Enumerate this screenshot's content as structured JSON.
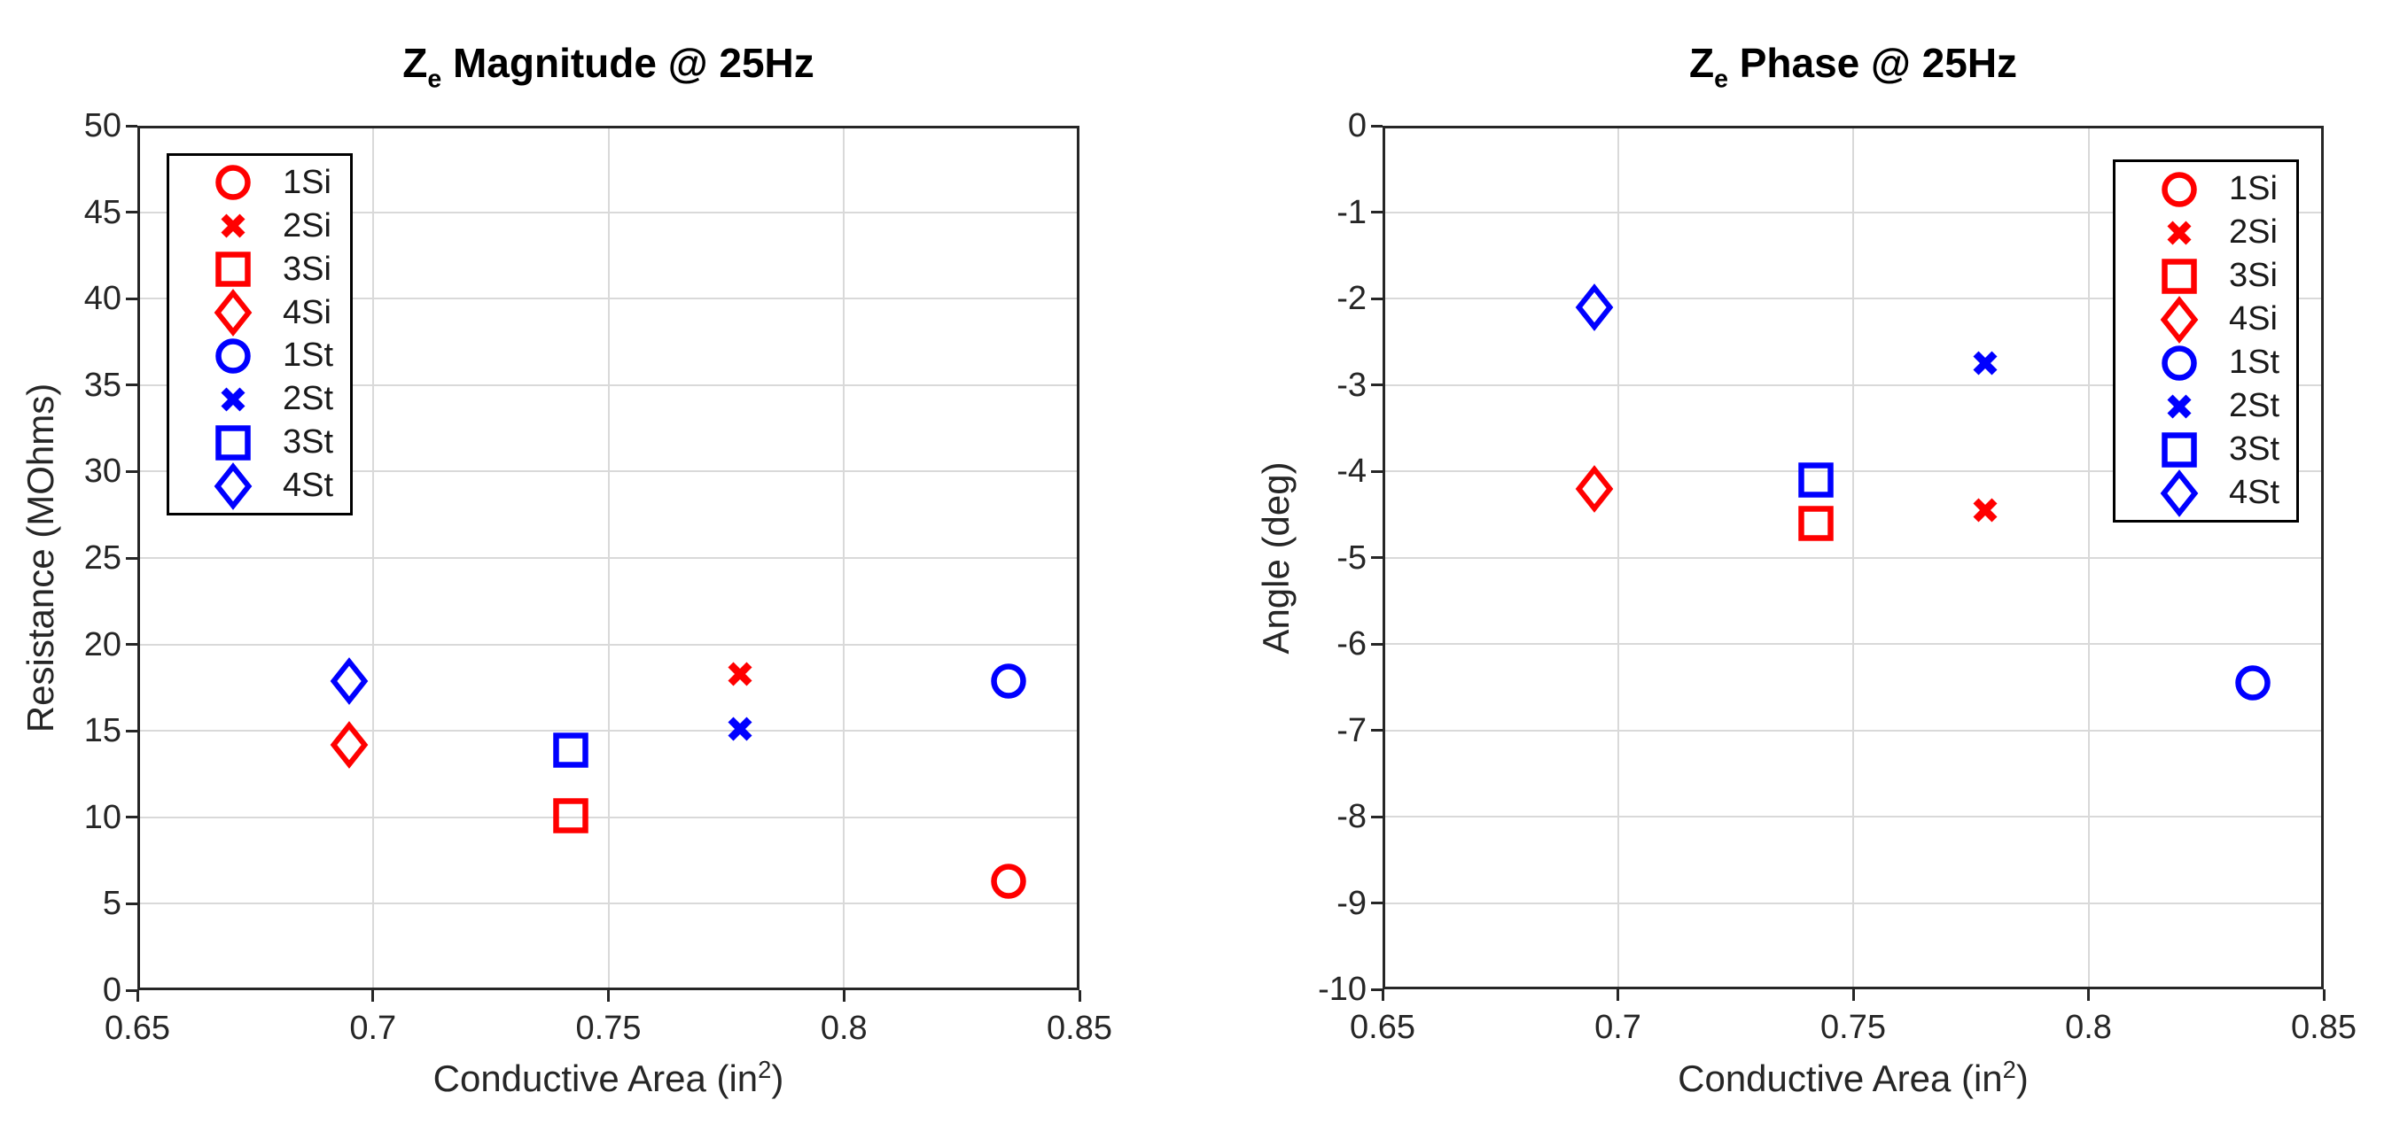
{
  "page": {
    "background": "#ffffff"
  },
  "palette": {
    "red": "#ff0000",
    "blue": "#0000ff",
    "axis": "#262626",
    "grid": "#d9d9d9",
    "title_text": "#000000",
    "legend_border": "#000000"
  },
  "chart_data": [
    {
      "type": "scatter",
      "title": {
        "main_pre": "Z",
        "sub": "e",
        "main_post": " Magnitude @ 25Hz"
      },
      "xlabel": {
        "pre": "Conductive Area (in",
        "sup": "2",
        "post": ")"
      },
      "ylabel": "Resistance (MOhms)",
      "xlim": [
        0.65,
        0.85
      ],
      "ylim": [
        0,
        50
      ],
      "xticks": [
        0.65,
        0.7,
        0.75,
        0.8,
        0.85
      ],
      "xtick_labels": [
        "0.65",
        "0.7",
        "0.75",
        "0.8",
        "0.85"
      ],
      "yticks": [
        0,
        5,
        10,
        15,
        20,
        25,
        30,
        35,
        40,
        45,
        50
      ],
      "ytick_labels": [
        "0",
        "5",
        "10",
        "15",
        "20",
        "25",
        "30",
        "35",
        "40",
        "45",
        "50"
      ],
      "grid": true,
      "legend_position": "top-left",
      "series": [
        {
          "name": "1Si",
          "marker": "circle",
          "color": "red",
          "points": [
            [
              0.835,
              6.3
            ]
          ]
        },
        {
          "name": "2Si",
          "marker": "x",
          "color": "red",
          "points": [
            [
              0.778,
              18.3
            ]
          ]
        },
        {
          "name": "3Si",
          "marker": "square",
          "color": "red",
          "points": [
            [
              0.742,
              10.1
            ]
          ]
        },
        {
          "name": "4Si",
          "marker": "diamond",
          "color": "red",
          "points": [
            [
              0.695,
              14.2
            ]
          ]
        },
        {
          "name": "1St",
          "marker": "circle",
          "color": "blue",
          "points": [
            [
              0.835,
              17.9
            ]
          ]
        },
        {
          "name": "2St",
          "marker": "x",
          "color": "blue",
          "points": [
            [
              0.778,
              15.1
            ]
          ]
        },
        {
          "name": "3St",
          "marker": "square",
          "color": "blue",
          "points": [
            [
              0.742,
              13.9
            ]
          ]
        },
        {
          "name": "4St",
          "marker": "diamond",
          "color": "blue",
          "points": [
            [
              0.695,
              17.9
            ]
          ]
        }
      ]
    },
    {
      "type": "scatter",
      "title": {
        "main_pre": "Z",
        "sub": "e",
        "main_post": " Phase @ 25Hz"
      },
      "xlabel": {
        "pre": "Conductive Area (in",
        "sup": "2",
        "post": ")"
      },
      "ylabel": "Angle (deg)",
      "xlim": [
        0.65,
        0.85
      ],
      "ylim": [
        -10,
        0
      ],
      "xticks": [
        0.65,
        0.7,
        0.75,
        0.8,
        0.85
      ],
      "xtick_labels": [
        "0.65",
        "0.7",
        "0.75",
        "0.8",
        "0.85"
      ],
      "yticks": [
        -10,
        -9,
        -8,
        -7,
        -6,
        -5,
        -4,
        -3,
        -2,
        -1,
        0
      ],
      "ytick_labels": [
        "-10",
        "-9",
        "-8",
        "-7",
        "-6",
        "-5",
        "-4",
        "-3",
        "-2",
        "-1",
        "0"
      ],
      "grid": true,
      "legend_position": "top-right",
      "series": [
        {
          "name": "1Si",
          "marker": "circle",
          "color": "red",
          "points": []
        },
        {
          "name": "2Si",
          "marker": "x",
          "color": "red",
          "points": [
            [
              0.778,
              -4.45
            ]
          ]
        },
        {
          "name": "3Si",
          "marker": "square",
          "color": "red",
          "points": [
            [
              0.742,
              -4.6
            ]
          ]
        },
        {
          "name": "4Si",
          "marker": "diamond",
          "color": "red",
          "points": [
            [
              0.695,
              -4.2
            ]
          ]
        },
        {
          "name": "1St",
          "marker": "circle",
          "color": "blue",
          "points": [
            [
              0.835,
              -6.45
            ]
          ]
        },
        {
          "name": "2St",
          "marker": "x",
          "color": "blue",
          "points": [
            [
              0.778,
              -2.75
            ]
          ]
        },
        {
          "name": "3St",
          "marker": "square",
          "color": "blue",
          "points": [
            [
              0.742,
              -4.1
            ]
          ]
        },
        {
          "name": "4St",
          "marker": "diamond",
          "color": "blue",
          "points": [
            [
              0.695,
              -2.1
            ]
          ]
        }
      ]
    }
  ]
}
